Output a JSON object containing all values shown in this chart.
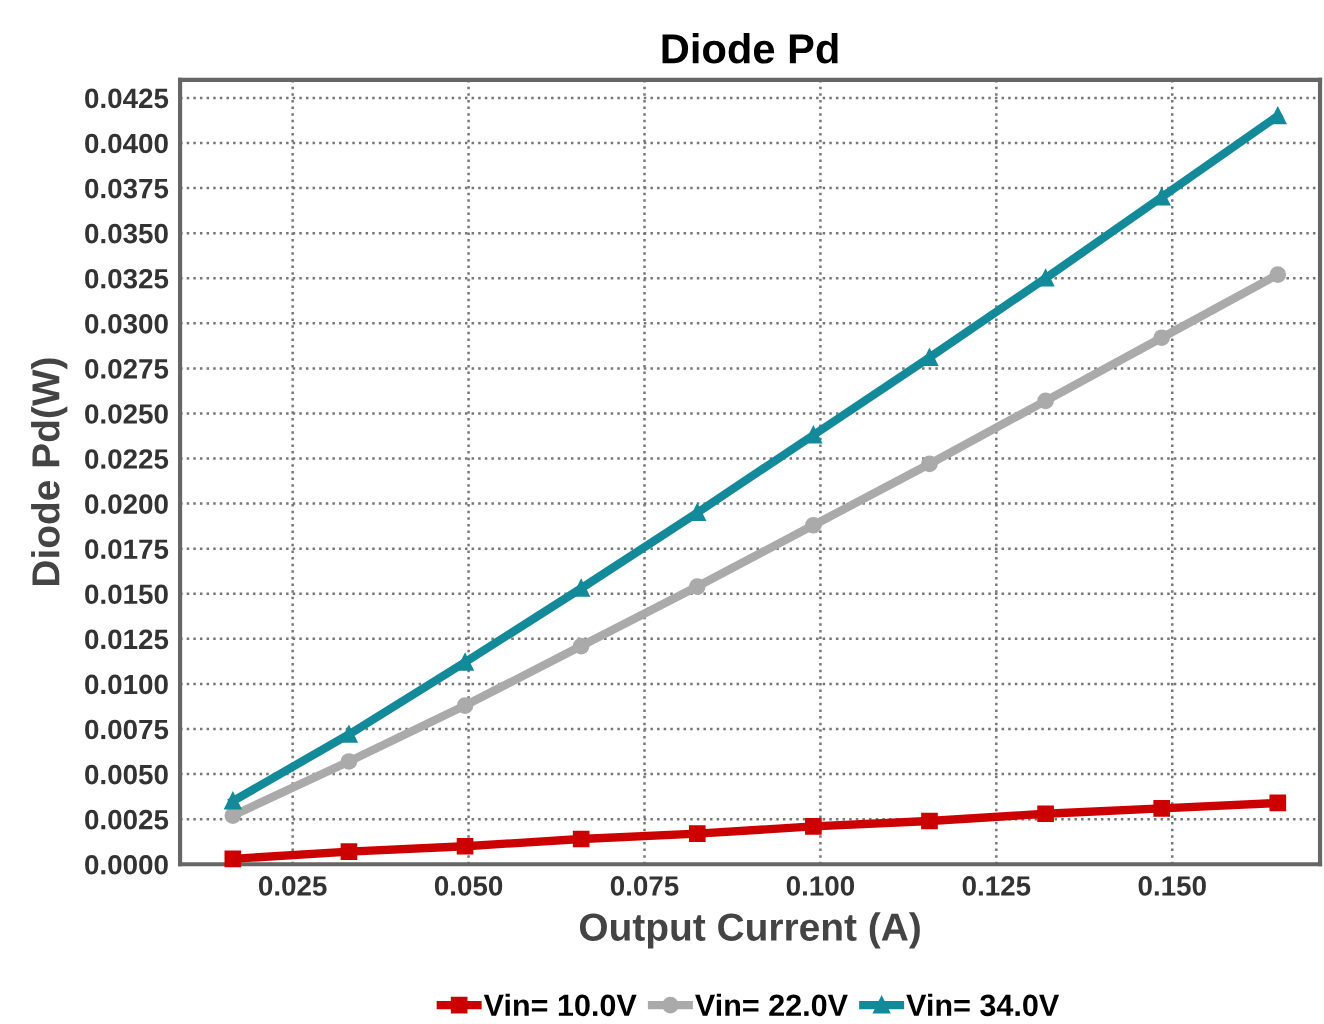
{
  "chart_data": {
    "type": "line",
    "title": "Diode Pd",
    "xlabel": "Output Current (A)",
    "ylabel": "Diode Pd(W)",
    "x": [
      0.0165,
      0.033,
      0.0495,
      0.066,
      0.0825,
      0.099,
      0.1155,
      0.132,
      0.1485,
      0.165
    ],
    "series": [
      {
        "name": "Vin= 10.0V",
        "color": "#cc0000",
        "marker": "square",
        "values": [
          0.0003,
          0.0007,
          0.001,
          0.0014,
          0.0017,
          0.0021,
          0.0024,
          0.0028,
          0.0031,
          0.0034
        ]
      },
      {
        "name": "Vin= 22.0V",
        "color": "#aaaaaa",
        "marker": "circle",
        "values": [
          0.0027,
          0.0057,
          0.0088,
          0.0121,
          0.0154,
          0.0188,
          0.0222,
          0.0257,
          0.0292,
          0.0327
        ]
      },
      {
        "name": "Vin= 34.0V",
        "color": "#138a9a",
        "marker": "triangle",
        "values": [
          0.0035,
          0.0072,
          0.0112,
          0.0153,
          0.0195,
          0.0238,
          0.0281,
          0.0325,
          0.037,
          0.0415
        ]
      }
    ],
    "xlim": [
      0.009,
      0.171
    ],
    "xticks": [
      0.025,
      {
        "value": 0.05,
        "label": "0.050"
      },
      0.075,
      {
        "value": 0.1,
        "label": "0.100"
      },
      0.125,
      {
        "value": 0.15,
        "label": "0.150"
      }
    ],
    "ylim": [
      0,
      0.0435
    ],
    "yticks": [
      {
        "value": 0,
        "label": "0.0000"
      },
      0.0025,
      {
        "value": 0.005,
        "label": "0.0050"
      },
      0.0075,
      {
        "value": 0.01,
        "label": "0.0100"
      },
      0.0125,
      {
        "value": 0.015,
        "label": "0.0150"
      },
      0.0175,
      {
        "value": 0.02,
        "label": "0.0200"
      },
      0.0225,
      {
        "value": 0.025,
        "label": "0.0250"
      },
      0.0275,
      {
        "value": 0.03,
        "label": "0.0300"
      },
      0.0325,
      {
        "value": 0.035,
        "label": "0.0350"
      },
      0.0375,
      {
        "value": 0.04,
        "label": "0.0400"
      },
      0.0425
    ],
    "grid": true,
    "legend": "bottom",
    "line_style": "solid"
  }
}
